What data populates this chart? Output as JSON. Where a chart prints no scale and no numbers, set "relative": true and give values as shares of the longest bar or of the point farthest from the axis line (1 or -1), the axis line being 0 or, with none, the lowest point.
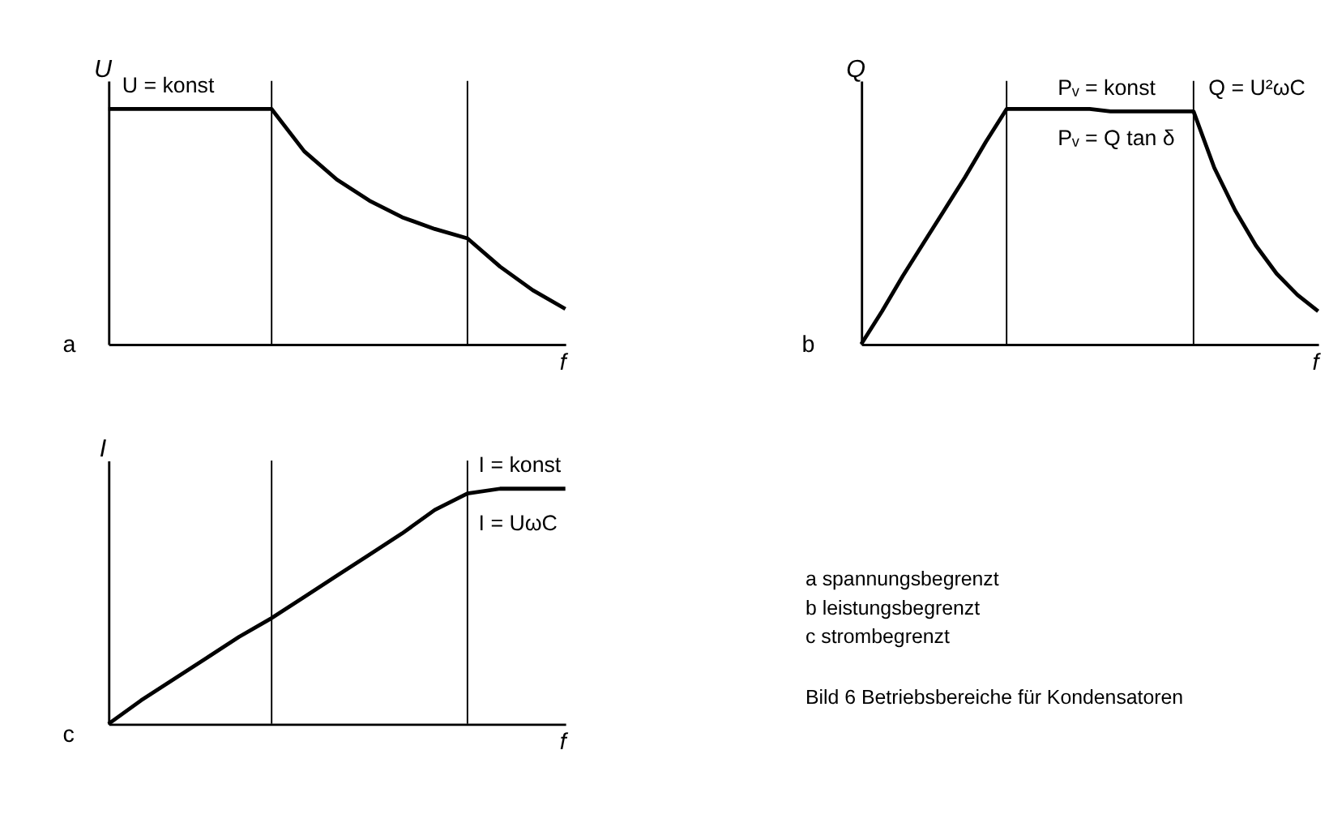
{
  "chart_data": [
    {
      "type": "line",
      "relative": true,
      "ylabel": "U",
      "xlabel": "f",
      "grid": false,
      "marker": "none",
      "line_style": "solid",
      "categories": [
        null,
        null,
        null,
        null,
        null,
        null,
        null,
        null,
        null,
        null,
        null,
        null,
        null,
        null,
        null
      ],
      "series": [
        {
          "color": "#000000",
          "values": [
            1,
            1,
            1,
            1,
            1,
            1,
            0.82,
            0.7,
            0.61,
            0.54,
            0.49,
            0.45,
            0.33,
            0.23,
            0.15
          ]
        }
      ],
      "annotations": [
        "a",
        "U = konst"
      ]
    },
    {
      "type": "line",
      "relative": true,
      "ylabel": "Q",
      "xlabel": "f",
      "grid": false,
      "marker": "none",
      "line_style": "solid",
      "categories": [
        null,
        null,
        null,
        null,
        null,
        null,
        null,
        null,
        null,
        null,
        null,
        null,
        null,
        null,
        null,
        null,
        null,
        null,
        null,
        null,
        null,
        null,
        null
      ],
      "series": [
        {
          "color": "#000000",
          "values": [
            0,
            0.14,
            0.29,
            0.43,
            0.57,
            0.71,
            0.86,
            1,
            1,
            1,
            1,
            1,
            0.99,
            0.99,
            0.99,
            0.99,
            0.99,
            0.75,
            0.57,
            0.42,
            0.3,
            0.21,
            0.14
          ]
        }
      ],
      "annotations": [
        "b",
        "Pᵥ = konst",
        "Pᵥ = Q tan δ",
        "Q = U²ωC"
      ]
    },
    {
      "type": "line",
      "relative": true,
      "ylabel": "I",
      "xlabel": "f",
      "grid": false,
      "marker": "none",
      "line_style": "solid",
      "categories": [
        null,
        null,
        null,
        null,
        null,
        null,
        null,
        null,
        null,
        null,
        null,
        null,
        null,
        null,
        null
      ],
      "series": [
        {
          "color": "#000000",
          "values": [
            0,
            0.1,
            0.19,
            0.28,
            0.37,
            0.45,
            0.54,
            0.63,
            0.72,
            0.81,
            0.91,
            0.98,
            1,
            1,
            1
          ]
        }
      ],
      "annotations": [
        "c",
        "I = konst",
        "I = UωC"
      ]
    },
    {
      "type": "other",
      "annotations": [
        "a spannungsbegrenzt",
        "b leistungsbegrenzt",
        "c strombegrenzt",
        "Bild 6   Betriebsbereiche für Kondensatoren"
      ]
    }
  ]
}
